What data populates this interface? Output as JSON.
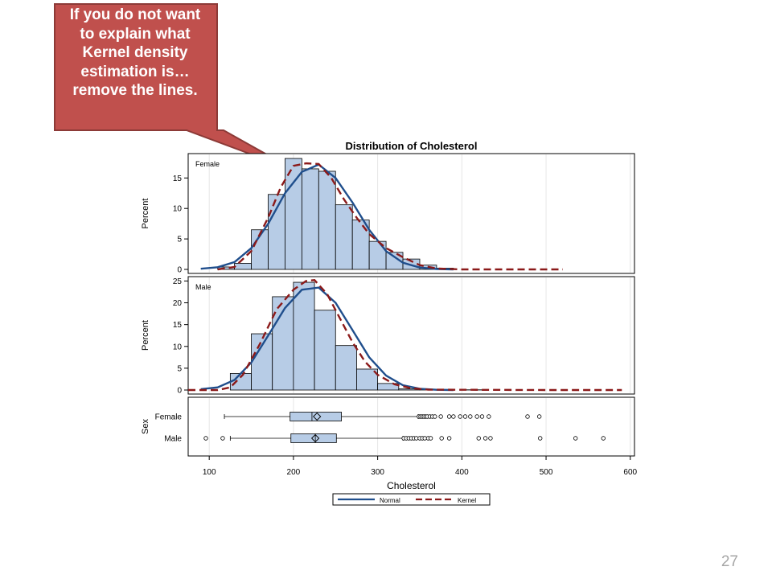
{
  "callout": {
    "lines": [
      "If you do not want",
      "to explain what",
      "Kernel density",
      "estimation is…",
      "remove the lines."
    ],
    "fill": "#c0504d",
    "border": "#8c3a37"
  },
  "page_number": "27",
  "colors": {
    "bar_fill": "#b7cce6",
    "bar_stroke": "#000000",
    "normal_line": "#1f4e8c",
    "kernel_line": "#8b1a1a",
    "grid": "#e6e6e6"
  },
  "chart_data": {
    "type": "histogram",
    "title": "Distribution of Cholesterol",
    "xlabel": "Cholesterol",
    "xlim": [
      75,
      605
    ],
    "xticks": [
      100,
      200,
      300,
      400,
      500,
      600
    ],
    "grid": true,
    "legend_position": "bottom",
    "legend": [
      "Normal",
      "Kernel"
    ],
    "panels": [
      {
        "label": "Female",
        "ylabel": "Percent",
        "ylim": [
          0,
          19
        ],
        "yticks": [
          0,
          5,
          10,
          15
        ],
        "bin_width": 20,
        "bins": [
          [
            120,
            0.4
          ],
          [
            140,
            1.0
          ],
          [
            160,
            6.5
          ],
          [
            180,
            12.3
          ],
          [
            200,
            18.2
          ],
          [
            220,
            16.5
          ],
          [
            240,
            16.1
          ],
          [
            260,
            10.6
          ],
          [
            280,
            8.1
          ],
          [
            300,
            4.6
          ],
          [
            320,
            2.8
          ],
          [
            340,
            1.7
          ],
          [
            360,
            0.7
          ],
          [
            380,
            0.2
          ]
        ],
        "normal": [
          [
            90,
            0.1
          ],
          [
            110,
            0.35
          ],
          [
            130,
            1.2
          ],
          [
            150,
            3.5
          ],
          [
            170,
            7.5
          ],
          [
            190,
            12.5
          ],
          [
            210,
            16.0
          ],
          [
            230,
            17.2
          ],
          [
            250,
            15.0
          ],
          [
            270,
            11.0
          ],
          [
            290,
            6.5
          ],
          [
            310,
            3.0
          ],
          [
            330,
            1.1
          ],
          [
            350,
            0.3
          ],
          [
            370,
            0.06
          ],
          [
            390,
            0.0
          ]
        ],
        "kernel": [
          [
            110,
            0.0
          ],
          [
            130,
            0.4
          ],
          [
            150,
            3.0
          ],
          [
            170,
            8.5
          ],
          [
            185,
            13.5
          ],
          [
            200,
            17.0
          ],
          [
            215,
            17.4
          ],
          [
            230,
            17.3
          ],
          [
            245,
            15.0
          ],
          [
            260,
            11.5
          ],
          [
            275,
            8.5
          ],
          [
            290,
            5.8
          ],
          [
            310,
            3.5
          ],
          [
            330,
            2.0
          ],
          [
            350,
            0.7
          ],
          [
            370,
            0.15
          ],
          [
            400,
            0.0
          ],
          [
            520,
            0.0
          ]
        ]
      },
      {
        "label": "Male",
        "ylabel": "Percent",
        "ylim": [
          0,
          26
        ],
        "yticks": [
          0,
          5,
          10,
          15,
          20,
          25
        ],
        "bin_width": 25,
        "bins": [
          [
            137.5,
            3.8
          ],
          [
            162.5,
            12.9
          ],
          [
            187.5,
            21.4
          ],
          [
            212.5,
            24.7
          ],
          [
            237.5,
            18.3
          ],
          [
            262.5,
            10.2
          ],
          [
            287.5,
            4.8
          ],
          [
            312.5,
            1.5
          ],
          [
            337.5,
            0.25
          ],
          [
            362.5,
            0.1
          ],
          [
            412.5,
            0.05
          ]
        ],
        "normal": [
          [
            90,
            0.2
          ],
          [
            110,
            0.6
          ],
          [
            130,
            2.3
          ],
          [
            150,
            6.3
          ],
          [
            170,
            12.5
          ],
          [
            190,
            18.8
          ],
          [
            210,
            23.0
          ],
          [
            230,
            23.5
          ],
          [
            250,
            20.0
          ],
          [
            270,
            13.8
          ],
          [
            290,
            7.5
          ],
          [
            310,
            3.3
          ],
          [
            330,
            1.1
          ],
          [
            350,
            0.3
          ],
          [
            370,
            0.05
          ],
          [
            390,
            0.0
          ]
        ],
        "kernel": [
          [
            75,
            0.0
          ],
          [
            110,
            0.0
          ],
          [
            125,
            0.6
          ],
          [
            140,
            3.5
          ],
          [
            160,
            10.5
          ],
          [
            180,
            18.5
          ],
          [
            200,
            23.0
          ],
          [
            215,
            25.0
          ],
          [
            225,
            25.2
          ],
          [
            240,
            22.0
          ],
          [
            255,
            16.5
          ],
          [
            270,
            11.0
          ],
          [
            285,
            6.5
          ],
          [
            300,
            3.5
          ],
          [
            320,
            1.3
          ],
          [
            340,
            0.4
          ],
          [
            360,
            0.1
          ],
          [
            400,
            0.05
          ],
          [
            500,
            0.0
          ],
          [
            590,
            0.0
          ]
        ]
      }
    ],
    "boxplot": {
      "ylabel": "Sex",
      "categories": [
        {
          "label": "Female",
          "whisker_low": 118,
          "q1": 196,
          "median": 222,
          "mean": 228,
          "q3": 257,
          "whisker_high": 348,
          "outliers": [
            349,
            351,
            353,
            355,
            357,
            359,
            362,
            365,
            368,
            375,
            385,
            390,
            398,
            404,
            410,
            418,
            424,
            432,
            478,
            492
          ]
        },
        {
          "label": "Male",
          "whisker_low": 125,
          "q1": 197,
          "median": 226,
          "mean": 226,
          "q3": 251,
          "whisker_high": 330,
          "outliers": [
            96,
            116,
            331,
            334,
            337,
            340,
            343,
            346,
            350,
            353,
            356,
            360,
            363,
            376,
            385,
            420,
            428,
            434,
            493,
            535,
            568
          ]
        }
      ]
    }
  }
}
